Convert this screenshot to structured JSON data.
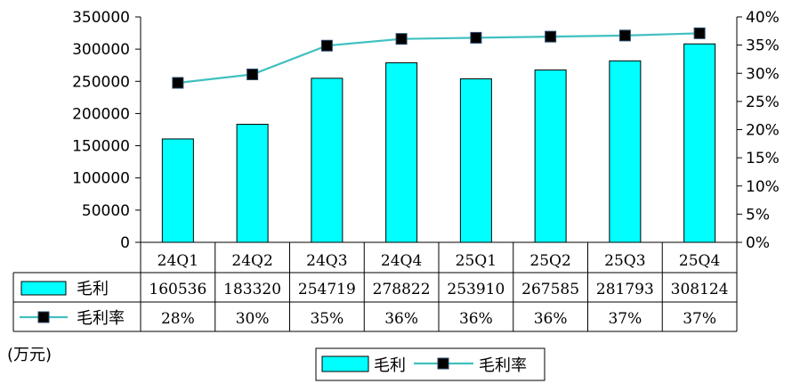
{
  "chart_data": {
    "type": "bar",
    "categories": [
      "24Q1",
      "24Q2",
      "24Q3",
      "24Q4",
      "25Q1",
      "25Q2",
      "25Q3",
      "25Q4"
    ],
    "series": [
      {
        "name": "毛利",
        "type": "bar",
        "axis": "left",
        "values": [
          160536,
          183320,
          254719,
          278822,
          253910,
          267585,
          281793,
          308124
        ],
        "color": "#00FFFF"
      },
      {
        "name": "毛利率",
        "type": "line",
        "axis": "right",
        "values": [
          28,
          30,
          35,
          36,
          36,
          36,
          37,
          37
        ],
        "display": [
          "28%",
          "30%",
          "35%",
          "36%",
          "36%",
          "36%",
          "37%",
          "37%"
        ],
        "point_values": [
          28.3,
          29.8,
          34.9,
          36.1,
          36.3,
          36.5,
          36.7,
          37.1
        ],
        "color": "#40C0C0",
        "marker": "#000000"
      }
    ],
    "y_left": {
      "ylim": [
        0,
        350000
      ],
      "ticks": [
        "0",
        "50000",
        "100000",
        "150000",
        "200000",
        "250000",
        "300000",
        "350000"
      ]
    },
    "y_right": {
      "ylim": [
        0,
        40
      ],
      "ticks": [
        "0%",
        "5%",
        "10%",
        "15%",
        "20%",
        "25%",
        "30%",
        "35%",
        "40%"
      ]
    },
    "unit_label": "(万元)",
    "legend": {
      "placement": "bottom-center",
      "items": [
        "毛利",
        "毛利率"
      ]
    },
    "table_rows": [
      "毛利",
      "毛利率"
    ],
    "grid": false
  }
}
